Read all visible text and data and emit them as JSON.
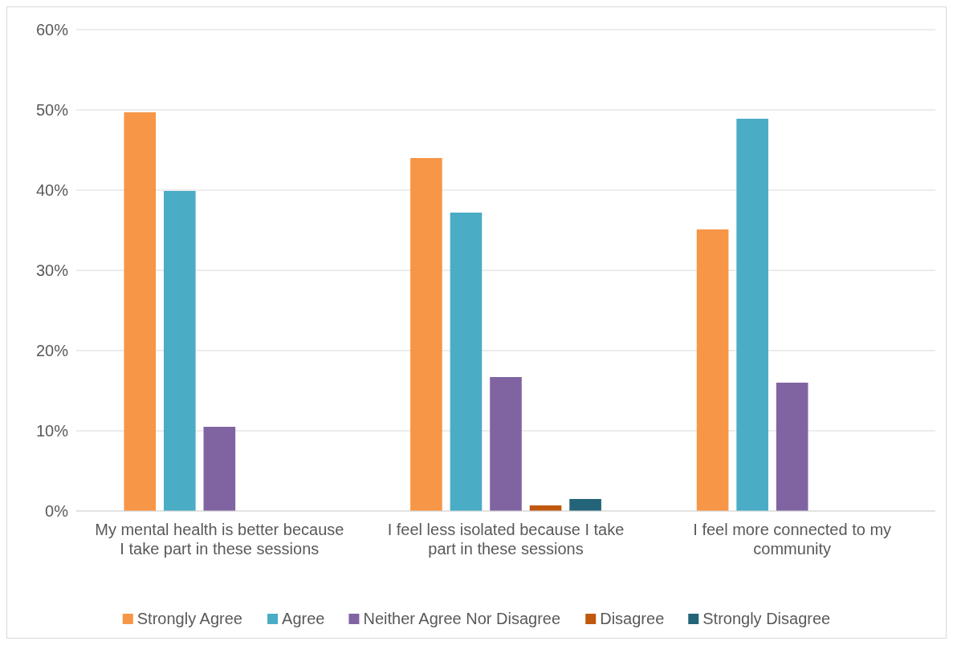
{
  "chart_data": {
    "type": "bar",
    "categories": [
      "My mental health is better because I take part in these sessions",
      "I feel less isolated because I take part in these sessions",
      "I feel more connected to my community"
    ],
    "series": [
      {
        "name": "Strongly Agree",
        "color": "#f79646",
        "values": [
          49.7,
          44.0,
          35.1
        ]
      },
      {
        "name": "Agree",
        "color": "#4bacc6",
        "values": [
          39.9,
          37.2,
          48.9
        ]
      },
      {
        "name": "Neither Agree Nor Disagree",
        "color": "#8064a2",
        "values": [
          10.5,
          16.7,
          16.0
        ]
      },
      {
        "name": "Disagree",
        "color": "#c0580f",
        "values": [
          0,
          0.7,
          0
        ]
      },
      {
        "name": "Strongly Disagree",
        "color": "#236479",
        "values": [
          0,
          1.5,
          0
        ]
      }
    ],
    "ylim": [
      0,
      60
    ],
    "yticks": [
      {
        "value": 0,
        "label": "0%"
      },
      {
        "value": 10,
        "label": "10%"
      },
      {
        "value": 20,
        "label": "20%"
      },
      {
        "value": 30,
        "label": "30%"
      },
      {
        "value": 40,
        "label": "40%"
      },
      {
        "value": 50,
        "label": "50%"
      },
      {
        "value": 60,
        "label": "60%"
      }
    ],
    "grid": "y",
    "legend": "bottom"
  }
}
